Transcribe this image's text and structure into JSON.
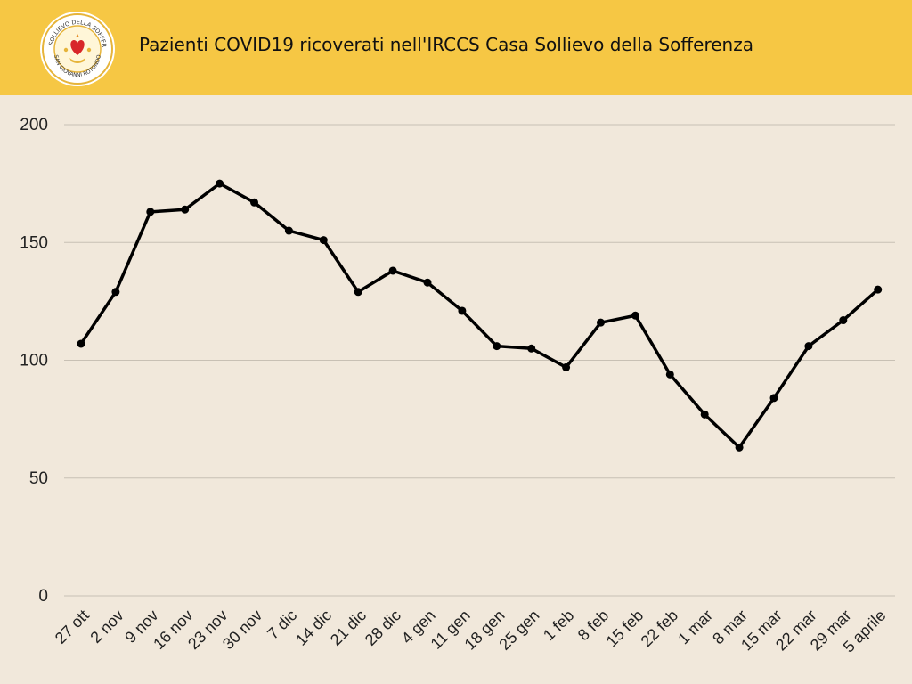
{
  "header": {
    "title": "Pazienti COVID19 ricoverati nell'IRCCS Casa Sollievo della Sofferenza",
    "logo_top_text": "CASA SOLLIEVO DELLA SOFFERENZA",
    "logo_bottom_text": "SAN GIOVANNI ROTONDO"
  },
  "colors": {
    "header_bg": "#f6c744",
    "page_bg": "#f1e8db",
    "line": "#000000",
    "grid": "#c8c0b4"
  },
  "chart_data": {
    "type": "line",
    "title": "Pazienti COVID19 ricoverati nell'IRCCS Casa Sollievo della Sofferenza",
    "xlabel": "",
    "ylabel": "",
    "ylim": [
      0,
      200
    ],
    "yticks": [
      0,
      50,
      100,
      150,
      200
    ],
    "grid": true,
    "legend": "none",
    "categories": [
      "27 ott",
      "2 nov",
      "9 nov",
      "16 nov",
      "23 nov",
      "30 nov",
      "7 dic",
      "14 dic",
      "21 dic",
      "28 dic",
      "4 gen",
      "11 gen",
      "18 gen",
      "25 gen",
      "1 feb",
      "8 feb",
      "15 feb",
      "22 feb",
      "1 mar",
      "8 mar",
      "15 mar",
      "22 mar",
      "29 mar",
      "5 aprile"
    ],
    "series": [
      {
        "values": [
          107,
          129,
          163,
          164,
          175,
          167,
          155,
          151,
          129,
          138,
          133,
          121,
          106,
          105,
          97,
          116,
          119,
          94,
          77,
          63,
          84,
          106,
          117,
          130
        ]
      }
    ]
  }
}
